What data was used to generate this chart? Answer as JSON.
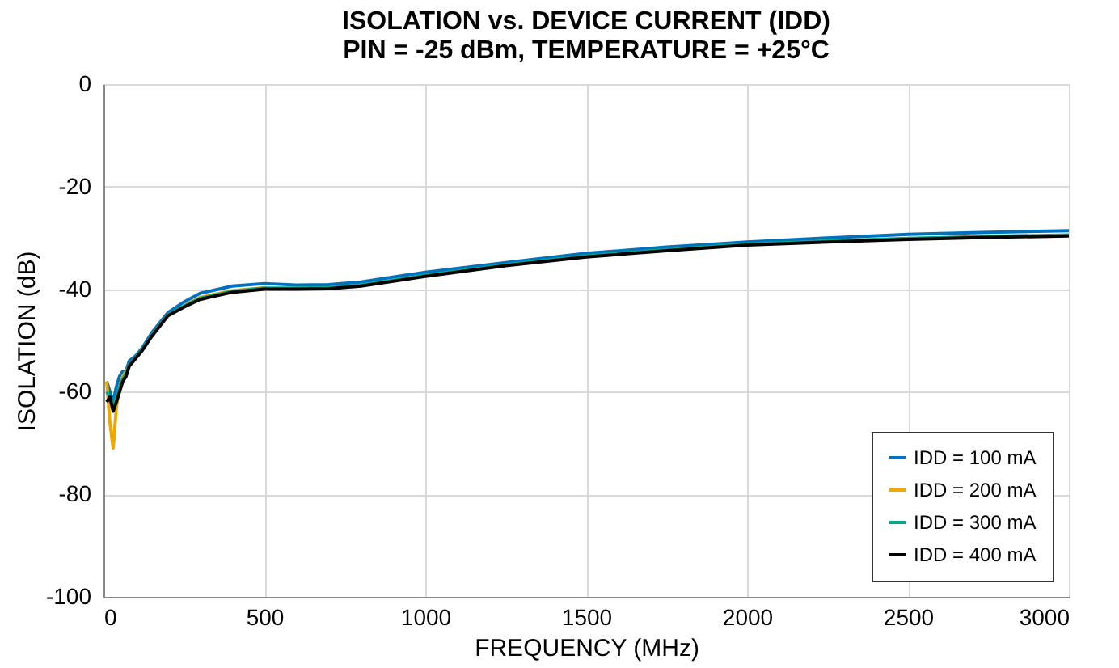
{
  "chart_data": {
    "type": "line",
    "title": "ISOLATION vs. DEVICE CURRENT (IDD)",
    "subtitle": "PIN = -25 dBm, TEMPERATURE = +25°C",
    "xlabel": "FREQUENCY (MHz)",
    "ylabel": "ISOLATION (dB)",
    "x": [
      10,
      20,
      30,
      40,
      50,
      60,
      70,
      80,
      100,
      120,
      150,
      200,
      250,
      300,
      400,
      500,
      600,
      700,
      800,
      1000,
      1250,
      1500,
      1750,
      2000,
      2250,
      2500,
      2750,
      3000
    ],
    "series": [
      {
        "name": "IDD = 100 mA",
        "color": "#0071bc",
        "values": [
          -58,
          -60,
          -62,
          -59,
          -57,
          -56,
          -56,
          -54,
          -53,
          -51.5,
          -48.5,
          -44.6,
          -42.5,
          -40.8,
          -39.4,
          -38.9,
          -39.2,
          -39.1,
          -38.6,
          -36.7,
          -34.8,
          -33.0,
          -31.8,
          -30.8,
          -30.0,
          -29.3,
          -28.9,
          -28.6
        ]
      },
      {
        "name": "IDD = 200 mA",
        "color": "#f0a800",
        "values": [
          -58,
          -66,
          -71,
          -63,
          -59,
          -57,
          -56,
          -55,
          -53.5,
          null,
          null,
          null,
          -43.2,
          -41.6,
          -40.3,
          -39.7,
          null,
          null,
          null,
          null,
          null,
          null,
          null,
          null,
          null,
          null,
          null,
          null
        ]
      },
      {
        "name": "IDD = 300 mA",
        "color": "#00a88f",
        "values": [
          -60,
          -61,
          -63,
          -61,
          -59,
          -57.5,
          -56.5,
          -54.8,
          -53.3,
          -51.8,
          -49,
          -45,
          -43.3,
          -41.8,
          -40.4,
          -39.8,
          -39.8,
          -39.7,
          -39.2,
          -37.3,
          -35.2,
          -33.5,
          -32.3,
          -31.2,
          -30.6,
          -30.1,
          -29.7,
          -29.4
        ]
      },
      {
        "name": "IDD = 400 mA",
        "color": "#000000",
        "values": [
          -62,
          -61,
          -63.8,
          -62,
          -60,
          -58,
          -57,
          -55,
          -53.5,
          -52,
          -49.2,
          -45.2,
          -43.5,
          -42,
          -40.6,
          -40,
          -40,
          -39.9,
          -39.4,
          -37.5,
          -35.4,
          -33.7,
          -32.5,
          -31.4,
          -30.8,
          -30.3,
          -29.9,
          -29.6
        ]
      }
    ],
    "xlim": [
      0,
      3000
    ],
    "xticks": [
      0,
      500,
      1000,
      1500,
      2000,
      2500,
      3000
    ],
    "ylim": [
      -100,
      0
    ],
    "yticks": [
      -100,
      -80,
      -60,
      -40,
      -20,
      0
    ],
    "grid": true,
    "legend": "bottom right",
    "line_style": "solid",
    "marker": "none"
  }
}
